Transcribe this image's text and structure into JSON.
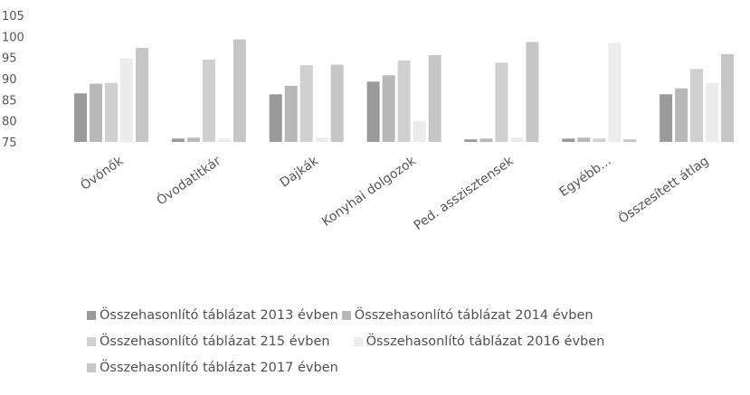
{
  "chart_data": {
    "type": "bar",
    "categories": [
      "Óvónők",
      "Óvodatitkár",
      "Dajkák",
      "Konyhai dolgozok",
      "Ped. asszisztensek",
      "Egyébb...",
      "Összesített átlag"
    ],
    "series": [
      {
        "name": "Összehasonlító táblázat 2013 évben",
        "color": "#9a9a9a",
        "values": [
          86.5,
          75.8,
          86.3,
          89.3,
          75.6,
          75.8,
          86.3
        ]
      },
      {
        "name": "Összehasonlító táblázat 2014 évben",
        "color": "#b8b8b8",
        "values": [
          88.8,
          76.0,
          88.3,
          90.8,
          75.8,
          76.0,
          87.7
        ]
      },
      {
        "name": "Összehasonlító táblázat 215 évben",
        "color": "#d0d0d0",
        "values": [
          89.0,
          94.5,
          93.2,
          94.3,
          93.8,
          75.8,
          92.3
        ]
      },
      {
        "name": "Összehasonlító táblázat 2016 évben",
        "color": "#ececec",
        "values": [
          94.8,
          75.8,
          76.0,
          80.0,
          76.0,
          98.5,
          89.0
        ]
      },
      {
        "name": "Összehasonlító táblázat 2017 évben",
        "color": "#c6c6c6",
        "values": [
          97.3,
          99.3,
          93.3,
          95.6,
          98.7,
          75.6,
          95.8
        ]
      }
    ],
    "ylim": [
      75,
      105
    ],
    "yticks": [
      75,
      80,
      85,
      90,
      95,
      100,
      105
    ],
    "grid": false,
    "legend_position": "bottom"
  }
}
